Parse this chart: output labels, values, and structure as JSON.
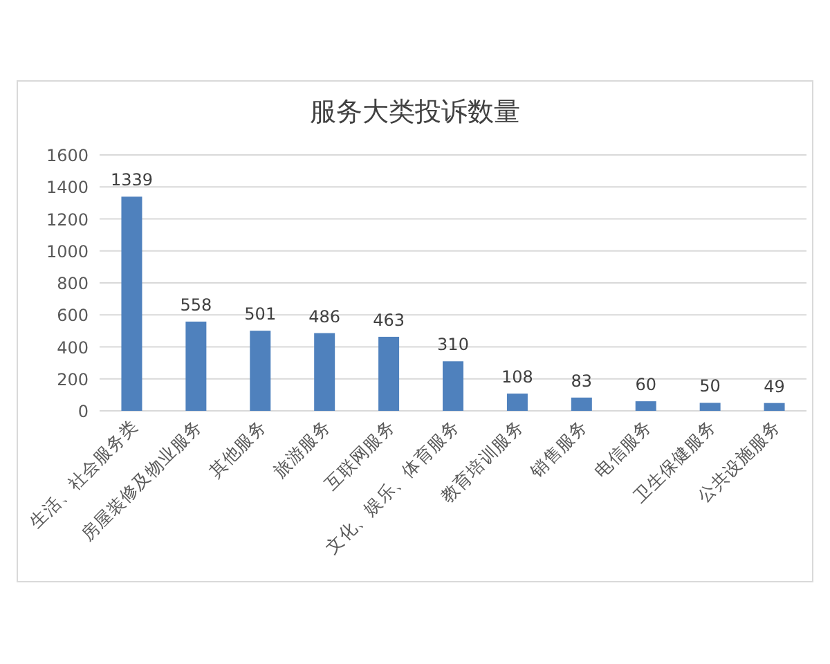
{
  "chart_data": {
    "type": "bar",
    "title": "服务大类投诉数量",
    "categories": [
      "生活、社会服务类",
      "房屋装修及物业服务",
      "其他服务",
      "旅游服务",
      "互联网服务",
      "文化、娱乐、体育服务",
      "教育培训服务",
      "销售服务",
      "电信服务",
      "卫生保健服务",
      "公共设施服务"
    ],
    "values": [
      1339,
      558,
      501,
      486,
      463,
      310,
      108,
      83,
      60,
      50,
      49
    ],
    "color": "#4f81bd",
    "ylim": [
      0,
      1600
    ],
    "yticks": [
      0,
      200,
      400,
      600,
      800,
      1000,
      1200,
      1400,
      1600
    ],
    "grid": "y",
    "data_labels": true
  }
}
